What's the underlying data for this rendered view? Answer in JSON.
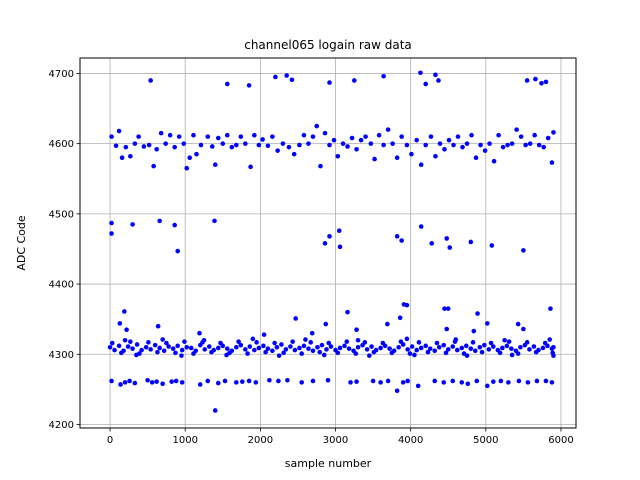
{
  "chart_data": {
    "type": "scatter",
    "title": "channel065 logain raw data",
    "xlabel": "sample number",
    "ylabel": "ADC Code",
    "xlim": [
      -400,
      6200
    ],
    "ylim": [
      4195,
      4722
    ],
    "xticks": [
      0,
      1000,
      2000,
      3000,
      4000,
      5000,
      6000
    ],
    "yticks": [
      4200,
      4300,
      4400,
      4500,
      4600,
      4700
    ],
    "grid": true,
    "marker_color": "#0000ff",
    "band_points": [
      [
        0,
        4310
      ],
      [
        60,
        4306
      ],
      [
        120,
        4312
      ],
      [
        180,
        4305
      ],
      [
        240,
        4311
      ],
      [
        300,
        4308
      ],
      [
        360,
        4314
      ],
      [
        420,
        4306
      ],
      [
        480,
        4310
      ],
      [
        540,
        4307
      ],
      [
        600,
        4313
      ],
      [
        660,
        4309
      ],
      [
        720,
        4305
      ],
      [
        780,
        4311
      ],
      [
        840,
        4308
      ],
      [
        900,
        4312
      ],
      [
        960,
        4306
      ],
      [
        1020,
        4310
      ],
      [
        1080,
        4309
      ],
      [
        1140,
        4305
      ],
      [
        1200,
        4313
      ],
      [
        1260,
        4307
      ],
      [
        1320,
        4311
      ],
      [
        1380,
        4306
      ],
      [
        1440,
        4309
      ],
      [
        1500,
        4312
      ],
      [
        1560,
        4308
      ],
      [
        1620,
        4305
      ],
      [
        1680,
        4310
      ],
      [
        1740,
        4313
      ],
      [
        1800,
        4307
      ],
      [
        1860,
        4311
      ],
      [
        1920,
        4306
      ],
      [
        1980,
        4309
      ],
      [
        2040,
        4312
      ],
      [
        2100,
        4308
      ],
      [
        2160,
        4305
      ],
      [
        2220,
        4310
      ],
      [
        2280,
        4314
      ],
      [
        2340,
        4307
      ],
      [
        2400,
        4311
      ],
      [
        2460,
        4306
      ],
      [
        2520,
        4309
      ],
      [
        2580,
        4312
      ],
      [
        2640,
        4308
      ],
      [
        2700,
        4305
      ],
      [
        2760,
        4310
      ],
      [
        2820,
        4313
      ],
      [
        2880,
        4307
      ],
      [
        2940,
        4311
      ],
      [
        3000,
        4306
      ],
      [
        3060,
        4309
      ],
      [
        3120,
        4312
      ],
      [
        3180,
        4308
      ],
      [
        3240,
        4305
      ],
      [
        3300,
        4310
      ],
      [
        3360,
        4313
      ],
      [
        3420,
        4307
      ],
      [
        3480,
        4311
      ],
      [
        3540,
        4306
      ],
      [
        3600,
        4309
      ],
      [
        3660,
        4312
      ],
      [
        3720,
        4308
      ],
      [
        3780,
        4305
      ],
      [
        3840,
        4310
      ],
      [
        3900,
        4314
      ],
      [
        3960,
        4307
      ],
      [
        4020,
        4311
      ],
      [
        4080,
        4306
      ],
      [
        4140,
        4309
      ],
      [
        4200,
        4312
      ],
      [
        4260,
        4308
      ],
      [
        4320,
        4305
      ],
      [
        4380,
        4310
      ],
      [
        4440,
        4313
      ],
      [
        4500,
        4307
      ],
      [
        4560,
        4311
      ],
      [
        4620,
        4306
      ],
      [
        4680,
        4309
      ],
      [
        4740,
        4312
      ],
      [
        4800,
        4308
      ],
      [
        4860,
        4305
      ],
      [
        4920,
        4310
      ],
      [
        4980,
        4313
      ],
      [
        5040,
        4307
      ],
      [
        5100,
        4311
      ],
      [
        5160,
        4306
      ],
      [
        5220,
        4309
      ],
      [
        5280,
        4312
      ],
      [
        5340,
        4308
      ],
      [
        5400,
        4305
      ],
      [
        5460,
        4310
      ],
      [
        5520,
        4313
      ],
      [
        5580,
        4307
      ],
      [
        5640,
        4311
      ],
      [
        5700,
        4306
      ],
      [
        5760,
        4309
      ],
      [
        5820,
        4312
      ],
      [
        5880,
        4308
      ],
      [
        5900,
        4310
      ],
      [
        30,
        4316
      ],
      [
        150,
        4302
      ],
      [
        270,
        4318
      ],
      [
        390,
        4301
      ],
      [
        510,
        4317
      ],
      [
        630,
        4303
      ],
      [
        750,
        4316
      ],
      [
        870,
        4302
      ],
      [
        990,
        4318
      ],
      [
        1110,
        4301
      ],
      [
        1230,
        4317
      ],
      [
        1350,
        4303
      ],
      [
        1470,
        4316
      ],
      [
        1590,
        4302
      ],
      [
        1710,
        4318
      ],
      [
        1830,
        4301
      ],
      [
        1950,
        4317
      ],
      [
        2070,
        4303
      ],
      [
        2190,
        4316
      ],
      [
        2310,
        4302
      ],
      [
        2430,
        4318
      ],
      [
        2550,
        4301
      ],
      [
        2670,
        4317
      ],
      [
        2790,
        4303
      ],
      [
        2910,
        4316
      ],
      [
        3030,
        4302
      ],
      [
        3150,
        4318
      ],
      [
        3270,
        4301
      ],
      [
        3390,
        4317
      ],
      [
        3510,
        4303
      ],
      [
        3630,
        4316
      ],
      [
        3750,
        4302
      ],
      [
        3870,
        4318
      ],
      [
        3990,
        4301
      ],
      [
        4110,
        4317
      ],
      [
        4230,
        4303
      ],
      [
        4350,
        4316
      ],
      [
        4470,
        4302
      ],
      [
        4590,
        4318
      ],
      [
        4710,
        4301
      ],
      [
        4830,
        4317
      ],
      [
        4950,
        4303
      ],
      [
        5070,
        4316
      ],
      [
        5190,
        4302
      ],
      [
        5310,
        4318
      ],
      [
        5430,
        4301
      ],
      [
        5550,
        4317
      ],
      [
        5670,
        4303
      ],
      [
        5790,
        4316
      ],
      [
        5890,
        4302
      ],
      [
        200,
        4320
      ],
      [
        700,
        4321
      ],
      [
        1250,
        4320
      ],
      [
        1900,
        4322
      ],
      [
        2600,
        4321
      ],
      [
        3300,
        4320
      ],
      [
        3950,
        4322
      ],
      [
        4600,
        4321
      ],
      [
        5250,
        4320
      ],
      [
        5850,
        4321
      ],
      [
        350,
        4299
      ],
      [
        950,
        4298
      ],
      [
        1550,
        4299
      ],
      [
        2250,
        4298
      ],
      [
        2850,
        4299
      ],
      [
        3450,
        4298
      ],
      [
        4050,
        4299
      ],
      [
        4750,
        4298
      ],
      [
        5350,
        4299
      ],
      [
        5900,
        4298
      ]
    ],
    "outlier_points": [
      [
        540,
        4690
      ],
      [
        1560,
        4685
      ],
      [
        1850,
        4683
      ],
      [
        2200,
        4695
      ],
      [
        2350,
        4697
      ],
      [
        2420,
        4691
      ],
      [
        2920,
        4687
      ],
      [
        3250,
        4690
      ],
      [
        3640,
        4696
      ],
      [
        4130,
        4701
      ],
      [
        4200,
        4685
      ],
      [
        4330,
        4698
      ],
      [
        4370,
        4690
      ],
      [
        5550,
        4690
      ],
      [
        5660,
        4692
      ],
      [
        5740,
        4686
      ],
      [
        5800,
        4688
      ],
      [
        20,
        4610
      ],
      [
        80,
        4597
      ],
      [
        120,
        4618
      ],
      [
        160,
        4580
      ],
      [
        210,
        4595
      ],
      [
        270,
        4582
      ],
      [
        330,
        4600
      ],
      [
        380,
        4610
      ],
      [
        450,
        4596
      ],
      [
        520,
        4598
      ],
      [
        580,
        4568
      ],
      [
        620,
        4592
      ],
      [
        680,
        4615
      ],
      [
        740,
        4600
      ],
      [
        800,
        4612
      ],
      [
        860,
        4595
      ],
      [
        920,
        4610
      ],
      [
        980,
        4600
      ],
      [
        1020,
        4565
      ],
      [
        1060,
        4580
      ],
      [
        1110,
        4612
      ],
      [
        1150,
        4585
      ],
      [
        1210,
        4598
      ],
      [
        1300,
        4610
      ],
      [
        1360,
        4596
      ],
      [
        1400,
        4570
      ],
      [
        1440,
        4608
      ],
      [
        1500,
        4600
      ],
      [
        1560,
        4612
      ],
      [
        1620,
        4595
      ],
      [
        1680,
        4598
      ],
      [
        1740,
        4610
      ],
      [
        1800,
        4600
      ],
      [
        1870,
        4567
      ],
      [
        1920,
        4612
      ],
      [
        1980,
        4598
      ],
      [
        2030,
        4606
      ],
      [
        2100,
        4597
      ],
      [
        2160,
        4610
      ],
      [
        2230,
        4590
      ],
      [
        2300,
        4600
      ],
      [
        2380,
        4595
      ],
      [
        2450,
        4585
      ],
      [
        2520,
        4598
      ],
      [
        2580,
        4612
      ],
      [
        2640,
        4600
      ],
      [
        2700,
        4610
      ],
      [
        2750,
        4625
      ],
      [
        2800,
        4568
      ],
      [
        2860,
        4615
      ],
      [
        2920,
        4598
      ],
      [
        2980,
        4605
      ],
      [
        3030,
        4582
      ],
      [
        3100,
        4600
      ],
      [
        3160,
        4596
      ],
      [
        3220,
        4608
      ],
      [
        3280,
        4592
      ],
      [
        3340,
        4605
      ],
      [
        3400,
        4610
      ],
      [
        3470,
        4600
      ],
      [
        3520,
        4578
      ],
      [
        3580,
        4612
      ],
      [
        3640,
        4598
      ],
      [
        3700,
        4620
      ],
      [
        3760,
        4600
      ],
      [
        3820,
        4580
      ],
      [
        3880,
        4610
      ],
      [
        3950,
        4598
      ],
      [
        4010,
        4585
      ],
      [
        4080,
        4605
      ],
      [
        4140,
        4570
      ],
      [
        4200,
        4598
      ],
      [
        4270,
        4610
      ],
      [
        4330,
        4582
      ],
      [
        4390,
        4600
      ],
      [
        4450,
        4592
      ],
      [
        4510,
        4605
      ],
      [
        4570,
        4598
      ],
      [
        4630,
        4610
      ],
      [
        4690,
        4595
      ],
      [
        4750,
        4600
      ],
      [
        4810,
        4612
      ],
      [
        4870,
        4580
      ],
      [
        4930,
        4598
      ],
      [
        4990,
        4590
      ],
      [
        5050,
        4600
      ],
      [
        5110,
        4575
      ],
      [
        5170,
        4612
      ],
      [
        5230,
        4595
      ],
      [
        5290,
        4598
      ],
      [
        5350,
        4600
      ],
      [
        5410,
        4620
      ],
      [
        5470,
        4610
      ],
      [
        5530,
        4598
      ],
      [
        5590,
        4600
      ],
      [
        5650,
        4612
      ],
      [
        5710,
        4598
      ],
      [
        5770,
        4595
      ],
      [
        5830,
        4608
      ],
      [
        5880,
        4573
      ],
      [
        5900,
        4616
      ],
      [
        20,
        4487
      ],
      [
        20,
        4472
      ],
      [
        300,
        4485
      ],
      [
        660,
        4490
      ],
      [
        860,
        4484
      ],
      [
        900,
        4447
      ],
      [
        1390,
        4490
      ],
      [
        2860,
        4458
      ],
      [
        2920,
        4468
      ],
      [
        3050,
        4476
      ],
      [
        3060,
        4453
      ],
      [
        3820,
        4468
      ],
      [
        3880,
        4462
      ],
      [
        4140,
        4482
      ],
      [
        4280,
        4458
      ],
      [
        4480,
        4465
      ],
      [
        4520,
        4452
      ],
      [
        4800,
        4460
      ],
      [
        5080,
        4455
      ],
      [
        5500,
        4448
      ],
      [
        130,
        4344
      ],
      [
        190,
        4361
      ],
      [
        220,
        4335
      ],
      [
        640,
        4340
      ],
      [
        1190,
        4330
      ],
      [
        2050,
        4328
      ],
      [
        2470,
        4351
      ],
      [
        2690,
        4330
      ],
      [
        2870,
        4343
      ],
      [
        3160,
        4360
      ],
      [
        3280,
        4335
      ],
      [
        3690,
        4343
      ],
      [
        3860,
        4352
      ],
      [
        3910,
        4371
      ],
      [
        3950,
        4370
      ],
      [
        4450,
        4365
      ],
      [
        4480,
        4336
      ],
      [
        4500,
        4365
      ],
      [
        4840,
        4333
      ],
      [
        4890,
        4358
      ],
      [
        5020,
        4344
      ],
      [
        5430,
        4343
      ],
      [
        5500,
        4336
      ],
      [
        5860,
        4365
      ],
      [
        20,
        4262
      ],
      [
        140,
        4257
      ],
      [
        200,
        4260
      ],
      [
        260,
        4262
      ],
      [
        330,
        4259
      ],
      [
        500,
        4263
      ],
      [
        560,
        4260
      ],
      [
        620,
        4261
      ],
      [
        700,
        4258
      ],
      [
        820,
        4261
      ],
      [
        880,
        4262
      ],
      [
        960,
        4260
      ],
      [
        1200,
        4257
      ],
      [
        1300,
        4262
      ],
      [
        1400,
        4220
      ],
      [
        1440,
        4259
      ],
      [
        1530,
        4262
      ],
      [
        1680,
        4260
      ],
      [
        1760,
        4261
      ],
      [
        1850,
        4262
      ],
      [
        1940,
        4260
      ],
      [
        2120,
        4263
      ],
      [
        2240,
        4262
      ],
      [
        2360,
        4263
      ],
      [
        2550,
        4260
      ],
      [
        2700,
        4262
      ],
      [
        2900,
        4263
      ],
      [
        3200,
        4260
      ],
      [
        3280,
        4261
      ],
      [
        3500,
        4262
      ],
      [
        3600,
        4260
      ],
      [
        3700,
        4262
      ],
      [
        3820,
        4248
      ],
      [
        3900,
        4260
      ],
      [
        3960,
        4262
      ],
      [
        4100,
        4255
      ],
      [
        4320,
        4262
      ],
      [
        4440,
        4260
      ],
      [
        4560,
        4262
      ],
      [
        4680,
        4260
      ],
      [
        4760,
        4258
      ],
      [
        4880,
        4262
      ],
      [
        5020,
        4255
      ],
      [
        5100,
        4261
      ],
      [
        5200,
        4262
      ],
      [
        5300,
        4260
      ],
      [
        5440,
        4262
      ],
      [
        5560,
        4260
      ],
      [
        5680,
        4262
      ],
      [
        5800,
        4262
      ],
      [
        5880,
        4260
      ]
    ]
  }
}
